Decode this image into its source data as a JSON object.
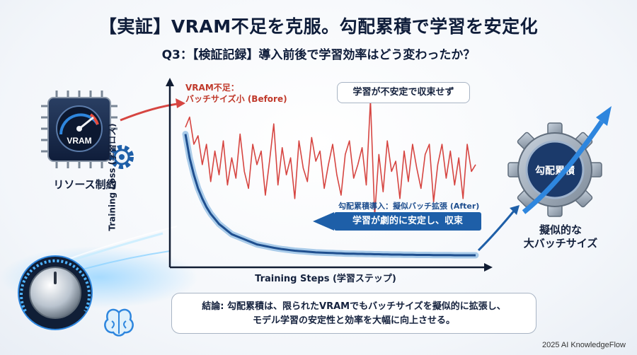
{
  "title": "【実証】VRAM不足を克服。勾配累積で学習を安定化",
  "subtitle": "Q3：【検証記録】導入前後で学習効率はどう変わったか？",
  "chip": {
    "icon_text": "VRAM",
    "label": "リソース制約"
  },
  "gear": {
    "icon_text": "勾配累積",
    "label_line1": "擬似的な",
    "label_line2": "大バッチサイズ"
  },
  "annotations": {
    "before_line1": "VRAM不足：",
    "before_line2": "バッチサイズ小 (Before)",
    "unstable_callout": "学習が不安定で収束せず",
    "after_label": "勾配累積導入：擬似バッチ拡張 (After)",
    "stable_banner": "学習が劇的に安定し、収束"
  },
  "conclusion": {
    "line1": "結論: 勾配累積は、限られたVRAMでもバッチサイズを擬似的に拡張し、",
    "line2": "モデル学習の安定性と効率を大幅に向上させる。"
  },
  "footer": "2025 AI KnowledgeFlow",
  "colors": {
    "before": "#d64541",
    "after": "#1f4f8f",
    "accent": "#1e5fa8"
  },
  "chart_data": {
    "type": "line",
    "xlabel": "Training Steps (学習ステップ)",
    "ylabel": "Training Loss (学習ロス)",
    "x": [
      0,
      1,
      2,
      3,
      4,
      5,
      6,
      7,
      8,
      9,
      10,
      11,
      12,
      13,
      14,
      15,
      16,
      17,
      18,
      19,
      20,
      21,
      22,
      23,
      24,
      25,
      26,
      27,
      28,
      29,
      30,
      31,
      32,
      33,
      34,
      35,
      36,
      37,
      38,
      39,
      40,
      41,
      42,
      43,
      44,
      45,
      46,
      47,
      48,
      49,
      50,
      51,
      52,
      53,
      54,
      55,
      56,
      57,
      58,
      59,
      60,
      61,
      62,
      63,
      64,
      65,
      66,
      67,
      68,
      69
    ],
    "ylim": [
      0,
      100
    ],
    "series": [
      {
        "name": "",
        "values": [
          80,
          86,
          70,
          75,
          58,
          70,
          48,
          66,
          52,
          72,
          46,
          62,
          50,
          76,
          54,
          44,
          70,
          58,
          66,
          40,
          60,
          82,
          46,
          68,
          52,
          62,
          38,
          72,
          56,
          48,
          74,
          60,
          66,
          44,
          58,
          70,
          52,
          40,
          64,
          72,
          50,
          58,
          68,
          46,
          96,
          28,
          64,
          42,
          72,
          54,
          60,
          38,
          66,
          48,
          70,
          56,
          44,
          64,
          70,
          36,
          58,
          70,
          50,
          66,
          46,
          62,
          38,
          70,
          54,
          58
        ]
      },
      {
        "name": "",
        "values": [
          76,
          62,
          52,
          44,
          38,
          33,
          29,
          26,
          23,
          21,
          19,
          17,
          16,
          15,
          14,
          13,
          12,
          11,
          10.5,
          10,
          9.5,
          9,
          8.6,
          8.2,
          7.9,
          7.6,
          7.3,
          7.1,
          6.9,
          6.7,
          6.5,
          6.3,
          6.2,
          6.1,
          6,
          5.9,
          5.8,
          5.7,
          5.6,
          5.5,
          5.5,
          5.4,
          5.4,
          5.3,
          5.3,
          5.2,
          5.2,
          5.1,
          5.1,
          5,
          5,
          5,
          4.9,
          4.9,
          4.9,
          4.8,
          4.8,
          4.8,
          4.8,
          4.7,
          4.7,
          4.7,
          4.7,
          4.7,
          4.6,
          4.6,
          4.6,
          4.6,
          4.6,
          4.6
        ]
      }
    ]
  }
}
